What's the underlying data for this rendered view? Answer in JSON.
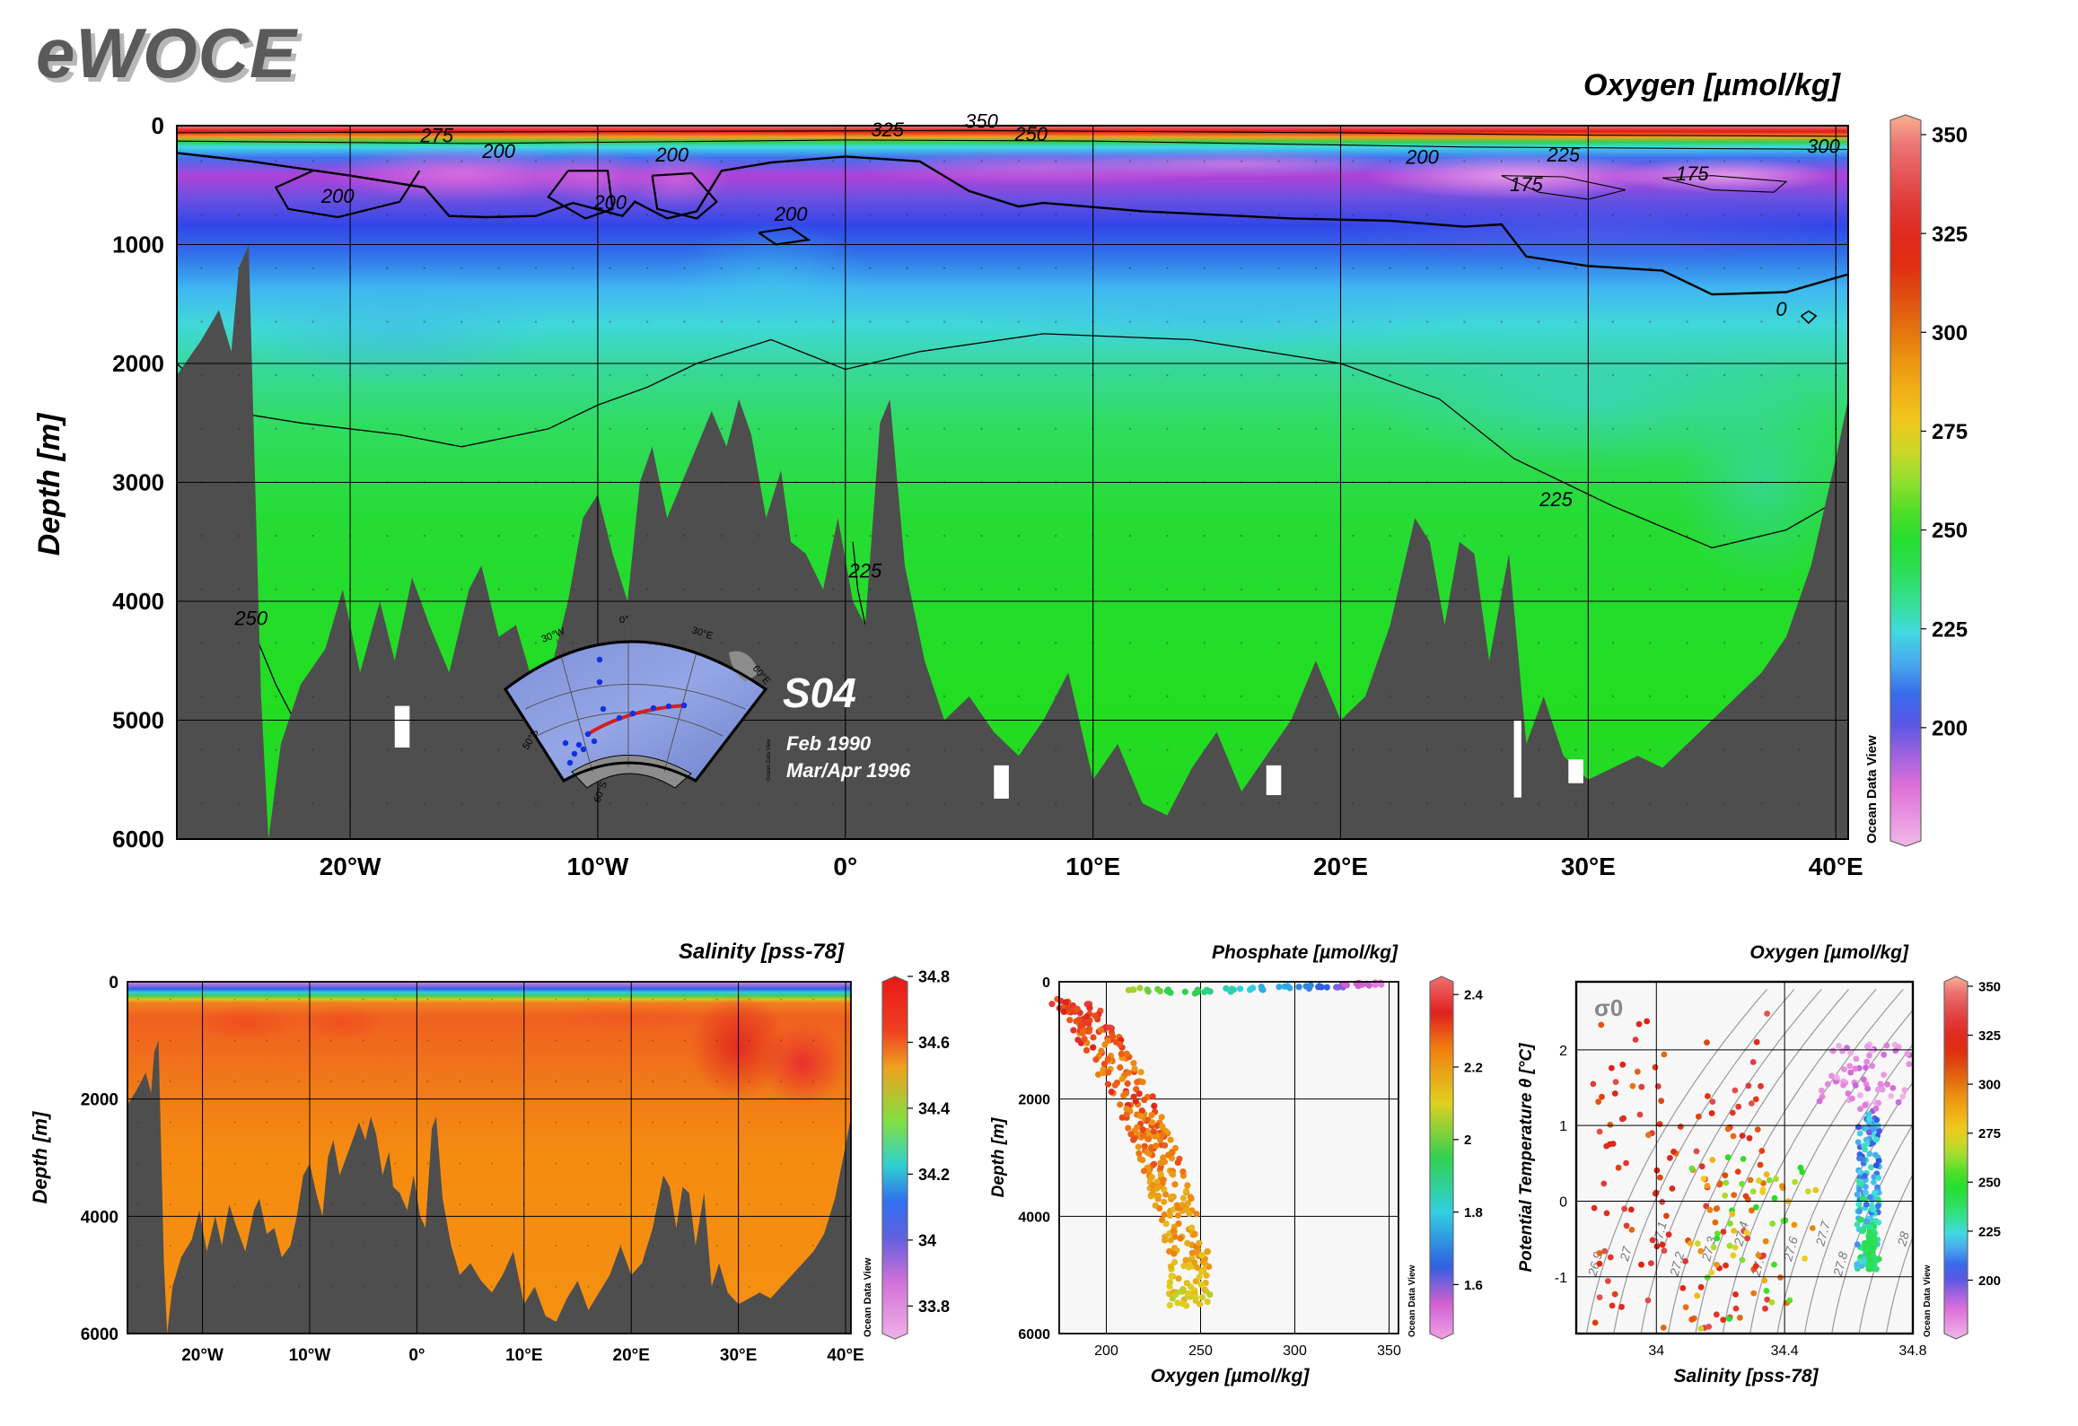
{
  "brand": "eWOCE",
  "section": {
    "name": "S04",
    "dates": [
      "Feb 1990",
      "Mar/Apr 1996"
    ]
  },
  "inset_map": {
    "labels": [
      "30°W",
      "0°",
      "30°E",
      "60°E",
      "50°S",
      "60°S"
    ],
    "credit": "Ocean Data View"
  },
  "chart_data": [
    {
      "id": "oxygen-section",
      "type": "heatmap",
      "title": "Oxygen [µmol/kg]",
      "ylabel": "Depth [m]",
      "xlabel": "",
      "xlim": [
        -27,
        40.5
      ],
      "ylim": [
        6000,
        0
      ],
      "x_ticks": [
        {
          "v": -20,
          "label": "20°W"
        },
        {
          "v": -10,
          "label": "10°W"
        },
        {
          "v": 0,
          "label": "0°"
        },
        {
          "v": 10,
          "label": "10°E"
        },
        {
          "v": 20,
          "label": "20°E"
        },
        {
          "v": 30,
          "label": "30°E"
        },
        {
          "v": 40,
          "label": "40°E"
        }
      ],
      "y_ticks": [
        0,
        1000,
        2000,
        3000,
        4000,
        5000,
        6000
      ],
      "grid": true,
      "colorbar": {
        "range": [
          170,
          355
        ],
        "ticks": [
          200,
          225,
          250,
          275,
          300,
          325,
          350
        ],
        "credit": "Ocean Data View"
      },
      "contour_labels": [
        {
          "x": -16.5,
          "y": 140,
          "text": "275"
        },
        {
          "x": -14,
          "y": 270,
          "text": "200"
        },
        {
          "x": -20.5,
          "y": 650,
          "text": "200"
        },
        {
          "x": -9.5,
          "y": 700,
          "text": "200"
        },
        {
          "x": -7,
          "y": 300,
          "text": "200"
        },
        {
          "x": -2.2,
          "y": 800,
          "text": "200"
        },
        {
          "x": 1.7,
          "y": 90,
          "text": "325"
        },
        {
          "x": 5.5,
          "y": 20,
          "text": "350"
        },
        {
          "x": 7.5,
          "y": 130,
          "text": "250"
        },
        {
          "x": 23.3,
          "y": 320,
          "text": "200"
        },
        {
          "x": 29,
          "y": 300,
          "text": "225"
        },
        {
          "x": 27.5,
          "y": 550,
          "text": "175"
        },
        {
          "x": 34.2,
          "y": 460,
          "text": "175"
        },
        {
          "x": 39.5,
          "y": 230,
          "text": "300"
        },
        {
          "x": 37.8,
          "y": 1600,
          "text": "0"
        },
        {
          "x": 28.7,
          "y": 3200,
          "text": "225"
        },
        {
          "x": 0.8,
          "y": 3800,
          "text": "225"
        },
        {
          "x": -24,
          "y": 4200,
          "text": "250"
        }
      ]
    },
    {
      "id": "salinity-section",
      "type": "heatmap",
      "title": "Salinity [pss-78]",
      "ylabel": "Depth [m]",
      "xlabel": "",
      "xlim": [
        -27,
        40.5
      ],
      "ylim": [
        6000,
        0
      ],
      "x_ticks": [
        {
          "v": -20,
          "label": "20°W"
        },
        {
          "v": -10,
          "label": "10°W"
        },
        {
          "v": 0,
          "label": "0°"
        },
        {
          "v": 10,
          "label": "10°E"
        },
        {
          "v": 20,
          "label": "20°E"
        },
        {
          "v": 30,
          "label": "30°E"
        },
        {
          "v": 40,
          "label": "40°E"
        }
      ],
      "y_ticks": [
        0,
        2000,
        4000,
        6000
      ],
      "grid": true,
      "colorbar": {
        "range": [
          33.7,
          34.8
        ],
        "ticks": [
          33.8,
          34,
          34.2,
          34.4,
          34.6,
          34.8
        ],
        "tick_labels": [
          "33.8",
          "34",
          "34.2",
          "34.4",
          "34.6",
          "34.8"
        ],
        "credit": "Ocean Data View"
      }
    },
    {
      "id": "phosphate-oxygen-profile",
      "type": "scatter",
      "title": "Phosphate [µmol/kg]",
      "xlabel": "Oxygen [µmol/kg]",
      "ylabel": "Depth [m]",
      "xlim": [
        175,
        355
      ],
      "ylim": [
        6000,
        0
      ],
      "x_ticks": [
        200,
        250,
        300,
        350
      ],
      "y_ticks": [
        0,
        2000,
        4000,
        6000
      ],
      "grid": true,
      "colorbar": {
        "range": [
          1.45,
          2.45
        ],
        "ticks": [
          1.6,
          1.8,
          2,
          2.2,
          2.4
        ],
        "tick_labels": [
          "1.6",
          "1.8",
          "2",
          "2.2",
          "2.4"
        ],
        "credit": "Ocean Data View"
      },
      "points_surface": [
        [
          215,
          120,
          2.05
        ],
        [
          225,
          140,
          2.0
        ],
        [
          235,
          160,
          1.95
        ],
        [
          245,
          170,
          1.95
        ],
        [
          255,
          150,
          1.9
        ],
        [
          265,
          140,
          1.85
        ],
        [
          275,
          130,
          1.8
        ],
        [
          285,
          110,
          1.75
        ],
        [
          295,
          100,
          1.75
        ],
        [
          305,
          90,
          1.7
        ],
        [
          315,
          80,
          1.65
        ],
        [
          322,
          70,
          1.6
        ],
        [
          330,
          60,
          1.55
        ],
        [
          337,
          50,
          1.55
        ],
        [
          345,
          40,
          1.5
        ]
      ],
      "points_deep": [
        [
          180,
          350,
          2.35
        ],
        [
          190,
          600,
          2.35
        ],
        [
          197,
          1000,
          2.3
        ],
        [
          205,
          1500,
          2.25
        ],
        [
          215,
          2000,
          2.3
        ],
        [
          222,
          2500,
          2.25
        ],
        [
          228,
          3000,
          2.25
        ],
        [
          233,
          3500,
          2.2
        ],
        [
          238,
          4000,
          2.2
        ],
        [
          243,
          4500,
          2.2
        ],
        [
          245,
          5000,
          2.15
        ],
        [
          244,
          5500,
          2.1
        ]
      ]
    },
    {
      "id": "theta-salinity-diagram",
      "type": "scatter",
      "title": "Oxygen [µmol/kg]",
      "xlabel": "Salinity [pss-78]",
      "ylabel": "Potential Temperature θ [°C]",
      "xlim": [
        33.75,
        34.8
      ],
      "ylim": [
        -1.75,
        2.9
      ],
      "x_ticks": [
        {
          "v": 34,
          "label": "34"
        },
        {
          "v": 34.4,
          "label": "34.4"
        },
        {
          "v": 34.8,
          "label": "34.8"
        }
      ],
      "y_ticks": [
        -1,
        0,
        1,
        2
      ],
      "grid": true,
      "density_label": "σ0",
      "isopycnals": [
        {
          "v": 26.9,
          "label": "26.9"
        },
        {
          "v": 27,
          "label": "27"
        },
        {
          "v": 27.1,
          "label": "27.1"
        },
        {
          "v": 27.2,
          "label": "27.2"
        },
        {
          "v": 27.3,
          "label": "27.3"
        },
        {
          "v": 27.4,
          "label": "27.4"
        },
        {
          "v": 27.5,
          "label": "27.5"
        },
        {
          "v": 27.6,
          "label": "27.6"
        },
        {
          "v": 27.7,
          "label": "27.7"
        },
        {
          "v": 27.8,
          "label": "27.8"
        },
        {
          "v": 27.9,
          "label": "27.9"
        },
        {
          "v": 28,
          "label": "28"
        }
      ],
      "colorbar": {
        "range": [
          170,
          355
        ],
        "ticks": [
          200,
          225,
          250,
          275,
          300,
          325,
          350
        ],
        "credit": "Ocean Data View"
      }
    }
  ]
}
